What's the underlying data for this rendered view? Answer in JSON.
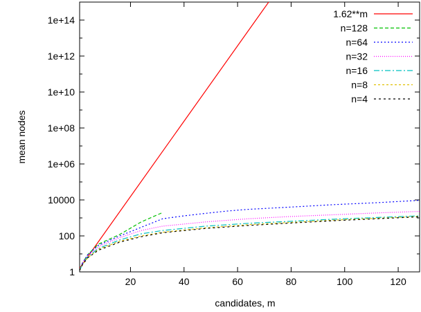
{
  "chart_data": {
    "type": "line",
    "title": "",
    "xlabel": "candidates, m",
    "ylabel": "mean nodes",
    "x_scale": "linear",
    "y_scale": "log10",
    "xlim": [
      1,
      128
    ],
    "ylim": [
      1,
      1000000000000000.0
    ],
    "x_ticks": [
      20,
      40,
      60,
      80,
      100,
      120
    ],
    "x_tick_labels": [
      "20",
      "40",
      "60",
      "80",
      "100",
      "120"
    ],
    "y_ticks": [
      1,
      100,
      10000,
      1000000.0,
      100000000.0,
      10000000000.0,
      1000000000000.0,
      100000000000000.0
    ],
    "y_tick_labels": [
      "1",
      "100",
      "10000",
      "1e+06",
      "1e+08",
      "1e+10",
      "1e+12",
      "1e+14"
    ],
    "grid": false,
    "legend_position": "top-right",
    "series": [
      {
        "name": "1.62**m",
        "color": "#ff0000",
        "dash": "",
        "x": [
          1,
          72
        ],
        "y": [
          1.62,
          1200000000000000.0
        ]
      },
      {
        "name": "n=128",
        "color": "#00c000",
        "dash": "5 3",
        "x": [
          1,
          2,
          4,
          8,
          16,
          24,
          32
        ],
        "y": [
          1.2,
          3,
          9,
          35,
          120,
          600,
          2000
        ]
      },
      {
        "name": "n=64",
        "color": "#0000ff",
        "dash": "2 3",
        "x": [
          1,
          2,
          4,
          8,
          16,
          24,
          32,
          40,
          48,
          56,
          64,
          80,
          96,
          112,
          128
        ],
        "y": [
          1.2,
          3,
          9,
          30,
          100,
          300,
          900,
          1300,
          1800,
          2400,
          3000,
          4000,
          5500,
          7000,
          9500
        ]
      },
      {
        "name": "n=32",
        "color": "#ff00ff",
        "dash": "1 2",
        "x": [
          1,
          2,
          4,
          8,
          16,
          24,
          32,
          48,
          64,
          80,
          96,
          112,
          128
        ],
        "y": [
          1.2,
          3,
          8,
          25,
          80,
          200,
          350,
          600,
          900,
          1200,
          1500,
          1900,
          2300
        ]
      },
      {
        "name": "n=16",
        "color": "#00c0c0",
        "dash": "8 3 2 3",
        "x": [
          1,
          2,
          4,
          8,
          16,
          24,
          32,
          48,
          64,
          80,
          96,
          112,
          128
        ],
        "y": [
          1.2,
          2.5,
          7,
          20,
          60,
          130,
          200,
          350,
          500,
          650,
          850,
          1050,
          1300
        ]
      },
      {
        "name": "n=8",
        "color": "#e0c000",
        "dash": "3 3",
        "x": [
          1,
          2,
          4,
          8,
          16,
          24,
          32,
          48,
          64,
          80,
          96,
          112,
          128
        ],
        "y": [
          1.2,
          2.5,
          6,
          18,
          50,
          100,
          160,
          280,
          420,
          560,
          750,
          950,
          1200
        ]
      },
      {
        "name": "n=4",
        "color": "#000000",
        "dash": "3 4",
        "x": [
          1,
          2,
          4,
          8,
          16,
          24,
          32,
          48,
          64,
          80,
          96,
          112,
          128
        ],
        "y": [
          1.2,
          2.4,
          6,
          16,
          45,
          90,
          150,
          260,
          380,
          520,
          700,
          900,
          1150
        ]
      }
    ]
  }
}
